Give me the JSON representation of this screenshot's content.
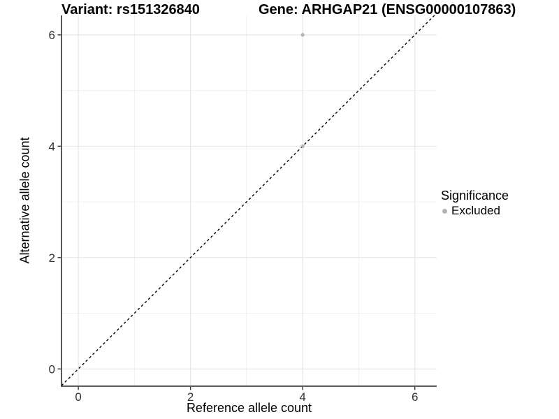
{
  "chart_data": {
    "type": "scatter",
    "title_left": "Variant: rs151326840",
    "title_right": "Gene: ARHGAP21 (ENSG00000107863)",
    "xlabel": "Reference allele count",
    "ylabel": "Alternative allele count",
    "xlim": [
      -0.3,
      6.39
    ],
    "ylim": [
      -0.31,
      6.35
    ],
    "x_major_ticks": [
      0,
      2,
      4,
      6
    ],
    "x_minor_ticks": [
      1,
      3,
      5
    ],
    "y_major_ticks": [
      0,
      2,
      4,
      6
    ],
    "y_minor_ticks": [
      1,
      3,
      5
    ],
    "grid": "major+minor",
    "points": [
      {
        "x": 4,
        "y": 6,
        "series": "Excluded"
      },
      {
        "x": 4,
        "y": 4,
        "series": "Excluded"
      }
    ],
    "reference_line": {
      "slope": 1,
      "intercept": 0,
      "style": "dashed",
      "color": "#000000"
    },
    "series_colors": {
      "Excluded": "#b3b3b3"
    },
    "legend": {
      "position": "right",
      "title": "Significance",
      "items": [
        {
          "label": "Excluded",
          "color": "#b3b3b3"
        }
      ]
    }
  },
  "colors": {
    "background": "#ffffff",
    "grid_major": "#e5e5e5",
    "grid_minor": "#f0f0f0",
    "axis_line": "#595959",
    "tick_mark": "#333333",
    "tick_label": "#333333",
    "text": "#000000"
  }
}
